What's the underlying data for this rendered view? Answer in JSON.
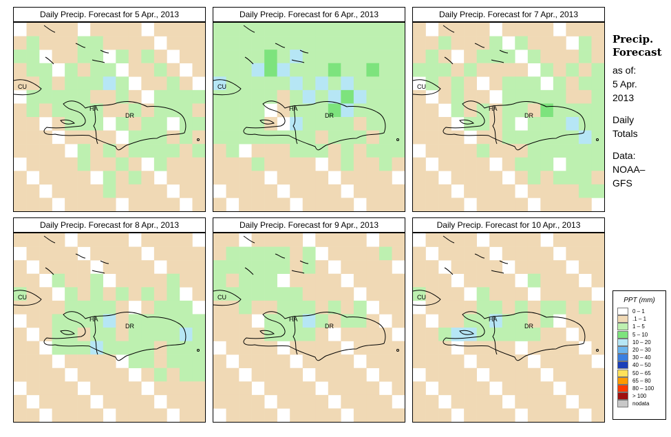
{
  "panels": [
    {
      "title": "Daily Precip. Forecast for  5 Apr., 2013"
    },
    {
      "title": "Daily Precip. Forecast for  6 Apr., 2013"
    },
    {
      "title": "Daily Precip. Forecast for  7 Apr., 2013"
    },
    {
      "title": "Daily Precip. Forecast for  8 Apr., 2013"
    },
    {
      "title": "Daily Precip. Forecast for  9 Apr., 2013"
    },
    {
      "title": "Daily Precip. Forecast for  10 Apr., 2013"
    }
  ],
  "map_labels": {
    "cu": "CU",
    "ha": "HA",
    "dr": "DR"
  },
  "sidebar": {
    "title_line1": "Precip.",
    "title_line2": "Forecast",
    "asof": "as of:",
    "date_line1": "5 Apr.",
    "date_line2": "2013",
    "totals_line1": "Daily",
    "totals_line2": "Totals",
    "data_line1": "Data:",
    "data_line2": "NOAA–",
    "data_line3": "GFS"
  },
  "legend": {
    "title": "PPT (mm)",
    "items": [
      {
        "label": "0 – 1",
        "color": "#ffffff"
      },
      {
        "label": ".1 – 1",
        "color": "#f0d9b5"
      },
      {
        "label": "1 – 5",
        "color": "#bdf0b0"
      },
      {
        "label": "5 – 10",
        "color": "#7de37d"
      },
      {
        "label": "10 – 20",
        "color": "#b6e6f5"
      },
      {
        "label": "20 – 30",
        "color": "#6bb5ee"
      },
      {
        "label": "30 – 40",
        "color": "#3a7fe0"
      },
      {
        "label": "40 – 50",
        "color": "#1b3fb8"
      },
      {
        "label": "50 – 65",
        "color": "#ffe15a"
      },
      {
        "label": "65 – 80",
        "color": "#ff9a00"
      },
      {
        "label": "80 – 100",
        "color": "#ff3a00"
      },
      {
        "label": "> 100",
        "color": "#a01010"
      },
      {
        "label": "nodata",
        "color": "#c8c8c8"
      }
    ]
  },
  "grids": [
    [
      "ttttttttttttttt",
      "tgtttggtttttttt",
      "ggtttggtgtgtttt",
      "tggtgtggtttgttt",
      "ttgtgggbgtttgtt",
      "tgggggttgttgggg",
      "tgtggggttgtgggt",
      "ttttgggtgtggtgg",
      "tttttttttgggtgt",
      "tttttgtgtggggtg",
      "tttttgttgttgttt",
      "tttttttgtgttttt",
      "tttttttgttttttt",
      "ttttttttttttttt"
    ],
    [
      "ggggggggggggggg",
      "ggggggggggggggg",
      "ggggGgbgggggggg",
      "gggbGbgggGggGgg",
      "bgggggbgbgbgggg",
      "gggggtgbgbGbggg",
      "ggggttgggGbgggg",
      "ggggttbggggtggg",
      "ggggggggtgggtgg",
      "tgttttgggtgtggg",
      "tttgttttttgttgt",
      "ttttttttttttttt",
      "ttttttttttttttt",
      "ttttttttttttttt"
    ],
    [
      "ttttttttttttttt",
      "ttgtttgtgttttgt",
      "tgtttgggtgtttgt",
      "gggtgtttttgtgtg",
      "tgtgtttgggtgtgg",
      "tttgtttgggggttg",
      "tttgtgtggtGgggg",
      "ttttggtgtgggbgg",
      "tttttttggggggbg",
      "tttttgtttgggggg",
      "ttttttttgggtggg",
      "tttttttttgtgggt",
      "tttttttttttttgg",
      "ttttttttttttttt"
    ],
    [
      "ttttttttttttttt",
      "ttttttttttttttt",
      "ttttttttttttttt",
      "tttgttgtttttgtt",
      "gtttgtgtgtgtgtt",
      "ttttggggtttgggt",
      "tttggggbtgggggg",
      "tttggtggtggggbg",
      "tttgggbggggtggg",
      "tttttttttggtggg",
      "tttttttttttgtgg",
      "ttttttttttttttt",
      "ttttttttttttttt",
      "ttttttttttttttt"
    ],
    [
      "ttttttttttttttt",
      "tgggggtgtttttgt",
      "ggggggtgttttttt",
      "gtgggtttttttttt",
      "gggggggtttttttt",
      "ttgttgggtgtgttt",
      "ttttgggbgtggttt",
      "ttttggggttttttt",
      "ttttttttttttttt",
      "ttttttttttttttt",
      "ttttttttttttttt",
      "ttttttttttttttt",
      "ttttttttttttttt",
      "ttttttttttttttt"
    ],
    [
      "ttttttttttttttt",
      "ttttttttttttttt",
      "ttttttttttttttt",
      "tttttttttgttttt",
      "gttttgttttttttt",
      "tttttggtgtggtgt",
      "ttttggbggtgtttt",
      "ttgbbgggggttttt",
      "ttttttttttttttt",
      "ttttttttttttttt",
      "ttttttttttttttt",
      "ttttttttttttttt",
      "ttttttttttttttt",
      "ttttttttttttttt"
    ]
  ]
}
